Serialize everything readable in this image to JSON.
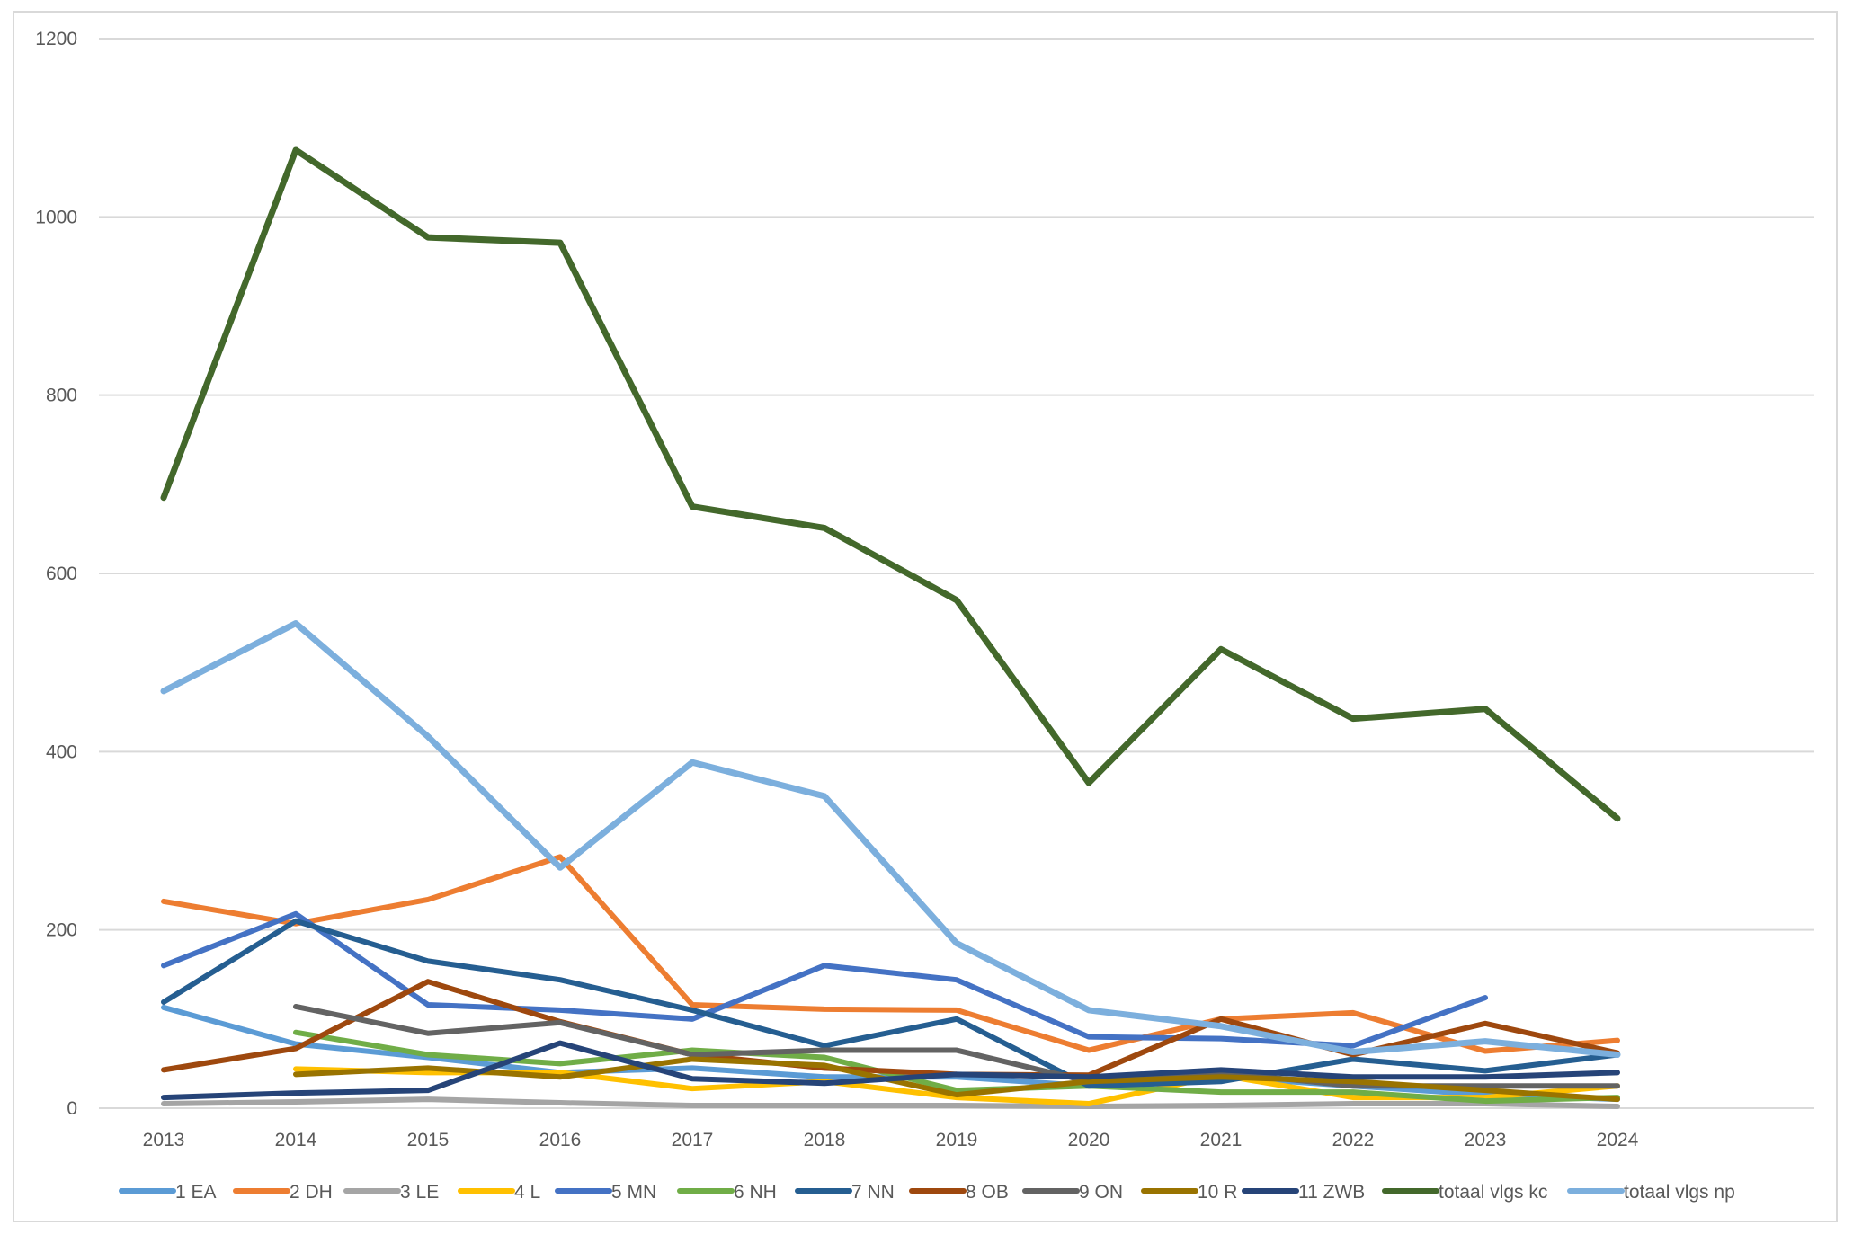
{
  "chart_data": {
    "type": "line",
    "title": "",
    "xlabel": "",
    "ylabel": "",
    "ylim": [
      0,
      1200
    ],
    "yticks": [
      0,
      200,
      400,
      600,
      800,
      1000,
      1200
    ],
    "grid": true,
    "legend": "bottom",
    "categories": [
      "2013",
      "2014",
      "2015",
      "2016",
      "2017",
      "2018",
      "2019",
      "2020",
      "2021",
      "2022",
      "2023",
      "2024"
    ],
    "series": [
      {
        "name": "1 EA",
        "color": "#5b9bd5",
        "values": [
          113,
          72,
          57,
          40,
          45,
          35,
          35,
          25,
          35,
          25,
          15,
          10
        ]
      },
      {
        "name": "2 DH",
        "color": "#ed7d31",
        "values": [
          232,
          207,
          234,
          282,
          116,
          111,
          110,
          65,
          100,
          107,
          64,
          76
        ]
      },
      {
        "name": "3 LE",
        "color": "#a5a5a5",
        "values": [
          5,
          7,
          10,
          6,
          3,
          3,
          3,
          2,
          3,
          5,
          5,
          2
        ]
      },
      {
        "name": "4 L",
        "color": "#ffc000",
        "values": [
          null,
          44,
          40,
          40,
          22,
          30,
          12,
          5,
          37,
          12,
          12,
          25
        ]
      },
      {
        "name": "5 MN",
        "color": "#4472c4",
        "values": [
          160,
          218,
          116,
          110,
          100,
          160,
          144,
          80,
          78,
          70,
          124,
          null
        ]
      },
      {
        "name": "6 NH",
        "color": "#70ad47",
        "values": [
          null,
          85,
          60,
          50,
          65,
          57,
          20,
          25,
          18,
          18,
          8,
          12
        ]
      },
      {
        "name": "7 NN",
        "color": "#255e91",
        "values": [
          119,
          210,
          165,
          144,
          110,
          70,
          100,
          25,
          30,
          55,
          42,
          60
        ]
      },
      {
        "name": "8 OB",
        "color": "#9e480e",
        "values": [
          43,
          67,
          142,
          97,
          60,
          45,
          38,
          37,
          100,
          60,
          95,
          62
        ]
      },
      {
        "name": "9 ON",
        "color": "#636363",
        "values": [
          null,
          114,
          84,
          96,
          60,
          65,
          65,
          30,
          40,
          25,
          25,
          25
        ]
      },
      {
        "name": "10 R",
        "color": "#997300",
        "values": [
          null,
          38,
          45,
          35,
          55,
          48,
          15,
          30,
          35,
          30,
          20,
          10
        ]
      },
      {
        "name": "11 ZWB",
        "color": "#264478",
        "values": [
          12,
          17,
          20,
          73,
          33,
          28,
          38,
          35,
          43,
          35,
          35,
          40
        ]
      },
      {
        "name": "totaal vlgs kc",
        "color": "#43682b",
        "values": [
          685,
          1075,
          977,
          971,
          675,
          651,
          570,
          365,
          515,
          437,
          448,
          325
        ]
      },
      {
        "name": "totaal vlgs np",
        "color": "#7cafdd",
        "values": [
          468,
          544,
          417,
          270,
          388,
          350,
          185,
          110,
          92,
          63,
          75,
          60
        ]
      }
    ]
  }
}
